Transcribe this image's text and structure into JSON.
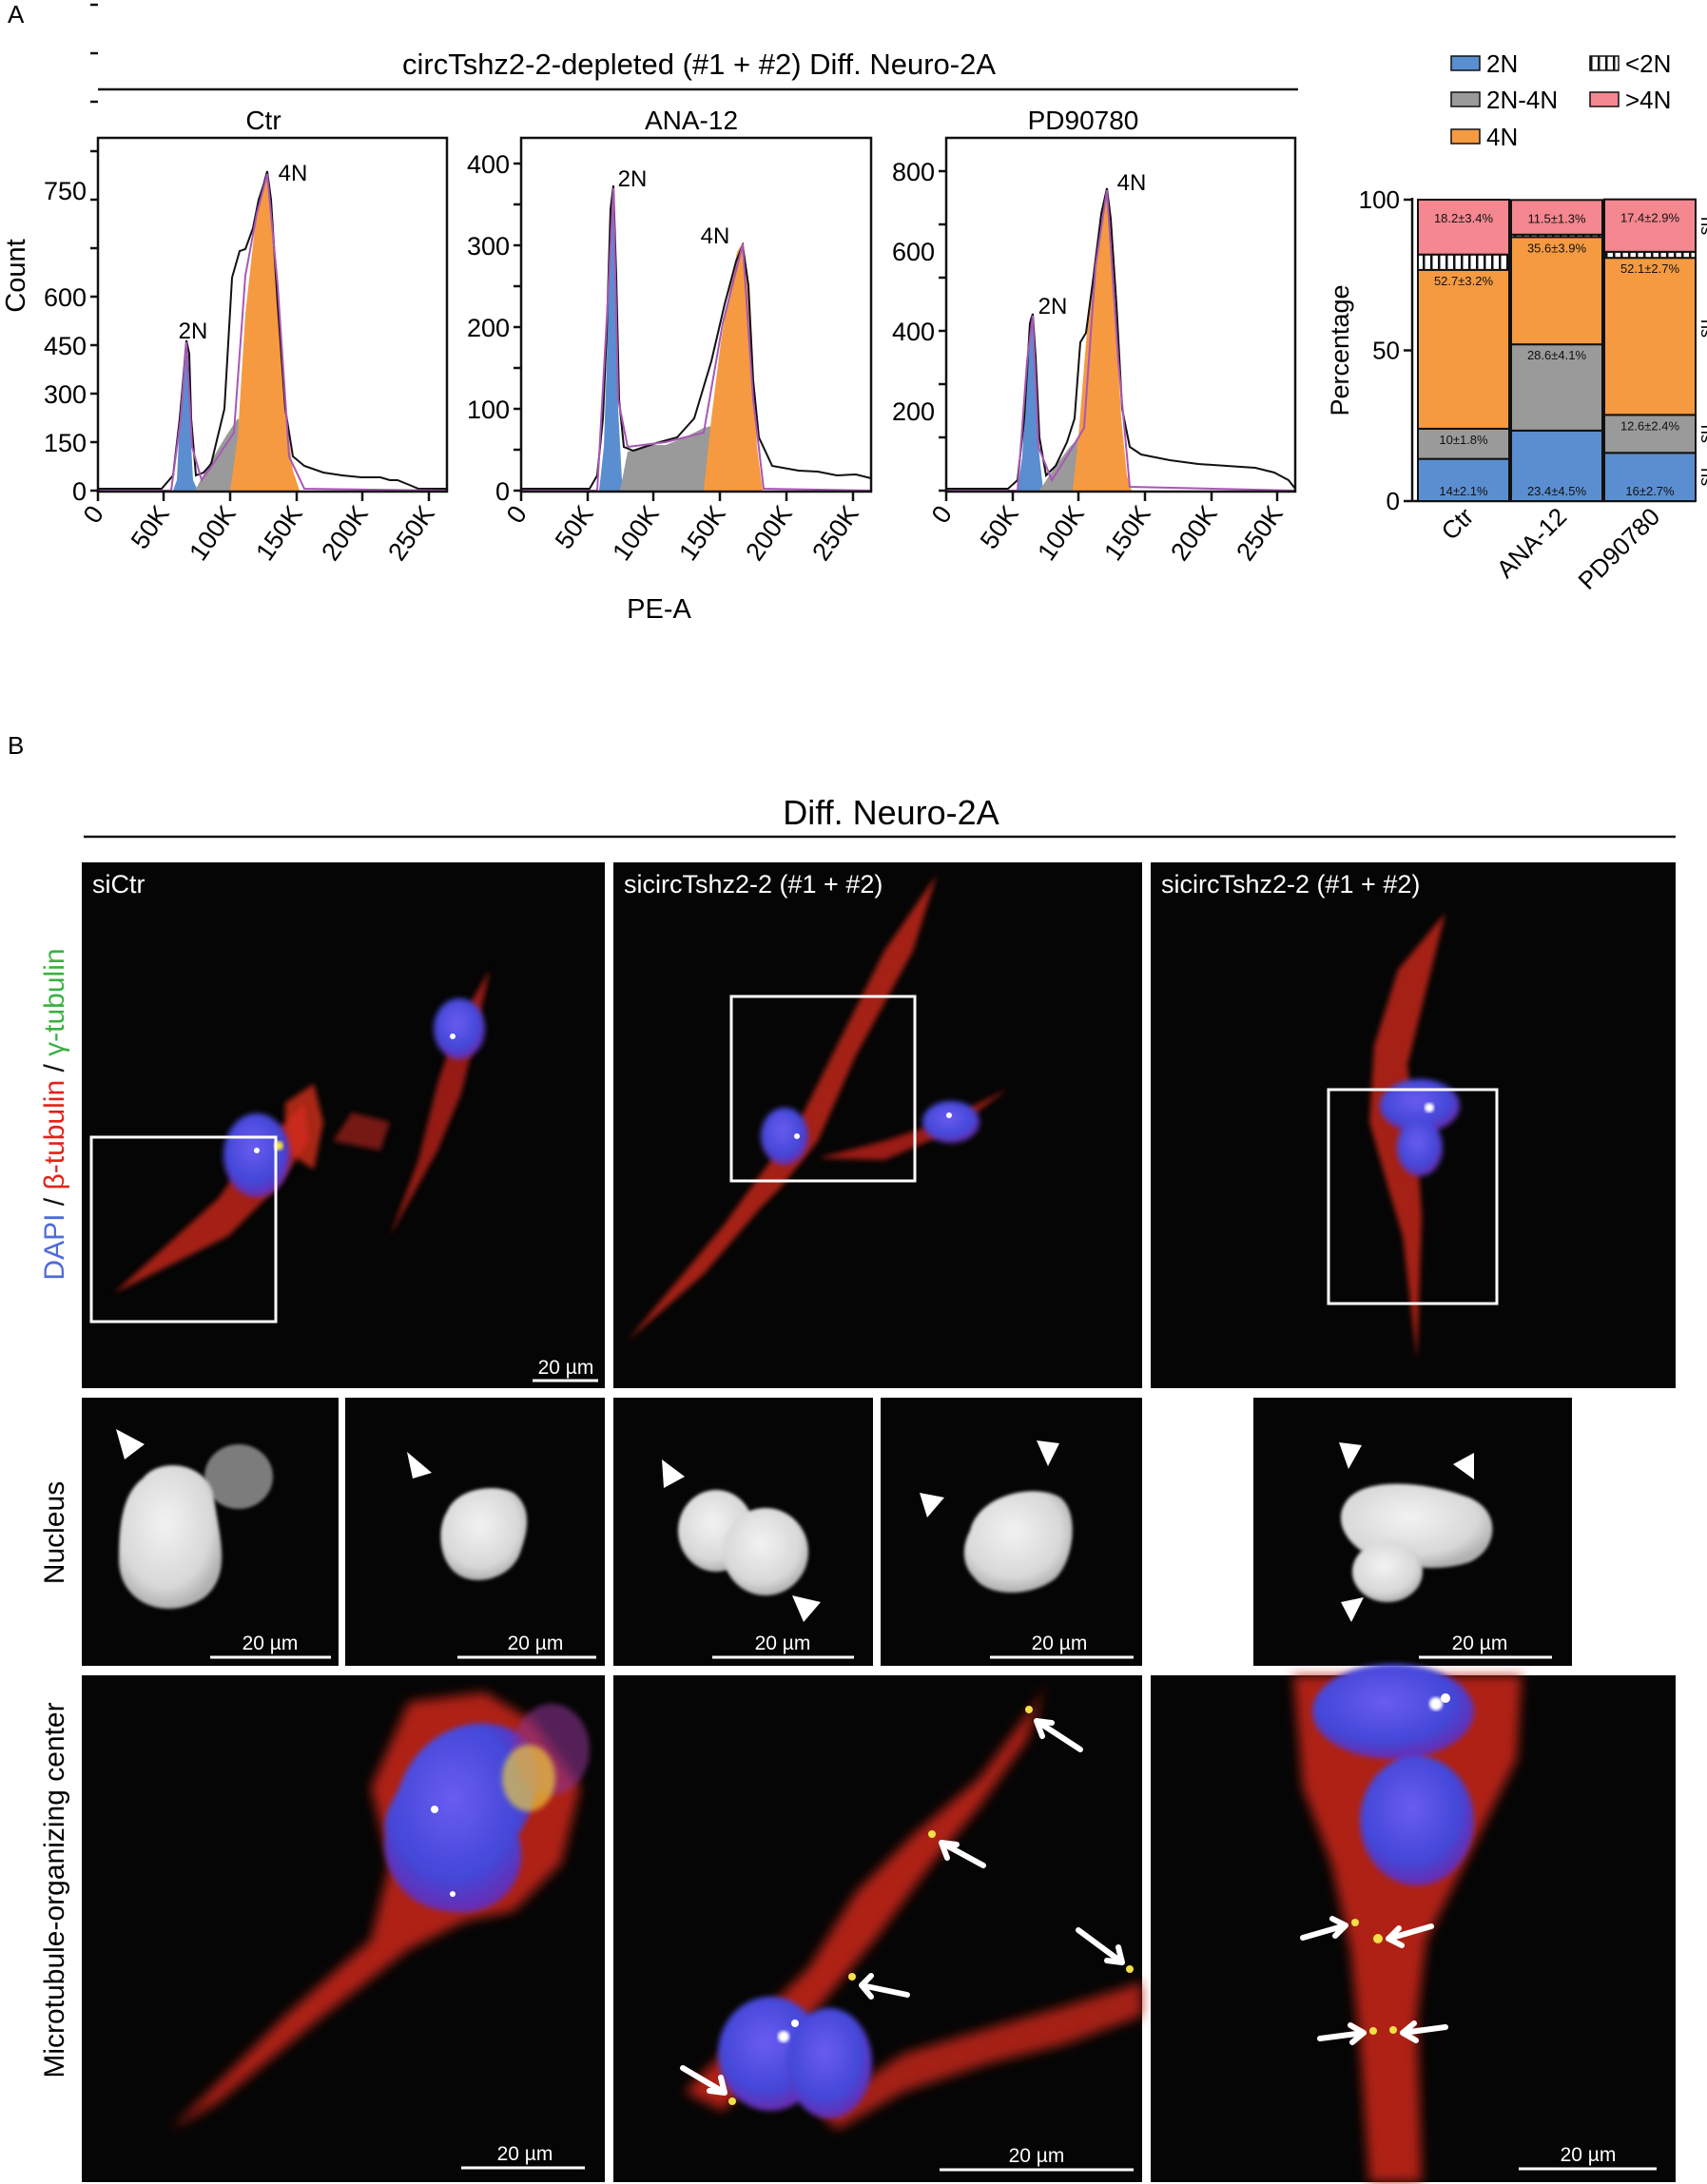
{
  "panel_a": {
    "letter": "A",
    "title": "circTshz2-2-depleted (#1 + #2) Diff. Neuro-2A",
    "histograms": [
      {
        "name": "Ctr",
        "peak_2n": "2N",
        "peak_4n": "4N",
        "y_ticks": [
          "0",
          "150",
          "300",
          "450",
          "600",
          "750"
        ]
      },
      {
        "name": "ANA-12",
        "peak_2n": "2N",
        "peak_4n": "4N",
        "y_ticks": [
          "0",
          "100",
          "200",
          "300",
          "400"
        ]
      },
      {
        "name": "PD90780",
        "peak_2n": "2N",
        "peak_4n": "4N",
        "y_ticks": [
          "0",
          "200",
          "400",
          "600",
          "800"
        ]
      }
    ],
    "x_ticks": [
      "0",
      "50K",
      "100K",
      "150K",
      "200K",
      "250K"
    ],
    "y_label": "Count",
    "x_label": "PE-A",
    "legend": [
      {
        "label": "2N",
        "color": "#5a8ed0"
      },
      {
        "label": "<2N",
        "color": "#ffffff"
      },
      {
        "label": "2N-4N",
        "color": "#9a9a9a"
      },
      {
        "label": ">4N",
        "color": "#f4878f"
      },
      {
        "label": "4N",
        "color": "#f59a40"
      }
    ]
  },
  "chart_data": {
    "type": "bar",
    "stacked": true,
    "categories": [
      "Ctr",
      "ANA-12",
      "PD90780"
    ],
    "ylabel": "Percentage",
    "ylim": [
      0,
      100
    ],
    "y_ticks": [
      "0",
      "50",
      "100"
    ],
    "series": [
      {
        "name": "2N",
        "color": "#5a8ed0",
        "values": [
          14,
          23.4,
          16
        ],
        "labels": [
          "14±2.1%",
          "23.4±4.5%",
          "16±2.7%"
        ]
      },
      {
        "name": "2N-4N",
        "color": "#9a9a9a",
        "values": [
          10,
          28.6,
          12.6
        ],
        "labels": [
          "10±1.8%",
          "28.6±4.1%",
          "12.6±2.4%"
        ]
      },
      {
        "name": "4N",
        "color": "#f59a40",
        "values": [
          52.7,
          35.6,
          52.1
        ],
        "labels": [
          "52.7±3.2%",
          "35.6±3.9%",
          "52.1±2.7%"
        ]
      },
      {
        "name": "<2N",
        "color": "#ffffff",
        "values": [
          5.1,
          0.8,
          2.0
        ],
        "labels": [
          "",
          "",
          ""
        ]
      },
      {
        "name": ">4N",
        "color": "#f4878f",
        "values": [
          18.2,
          11.5,
          17.4
        ],
        "labels": [
          "18.2±3.4%",
          "11.5±1.3%",
          "17.4±2.9%"
        ]
      }
    ],
    "significance": {
      "ANA-12": [
        "*",
        "**",
        "***",
        "*"
      ],
      "PD90780": [
        "ns",
        "ns",
        "ns",
        "ns"
      ]
    }
  },
  "panel_b": {
    "letter": "B",
    "title": "Diff. Neuro-2A",
    "stain_label": {
      "dapi": "DAPI",
      "sep1": " / ",
      "beta": "β-tubulin",
      "sep2": " / ",
      "gamma": "γ-tubulin"
    },
    "conditions": [
      "siCtr",
      "sicircTshz2-2 (#1 + #2)",
      "sicircTshz2-2 (#1 + #2)"
    ],
    "row_labels": {
      "nucleus": "Nucleus",
      "mtoc": "Microtubule-organizing center"
    },
    "scale_bar": "20 µm",
    "colors": {
      "dapi": "#4e6bd8",
      "beta": "#e32219",
      "gamma": "#3cb043"
    }
  }
}
